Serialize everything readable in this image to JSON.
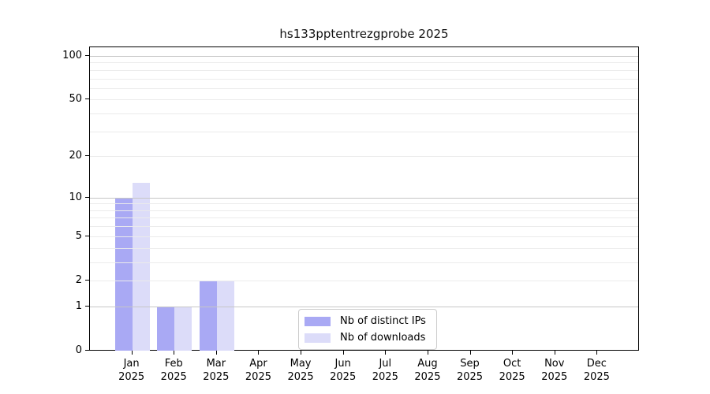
{
  "figure": {
    "title": "hs133pptentrezgprobe 2025"
  },
  "chart_data": {
    "type": "bar",
    "title": "hs133pptentrezgprobe 2025",
    "year": "2025",
    "categories": [
      "Jan",
      "Feb",
      "Mar",
      "Apr",
      "May",
      "Jun",
      "Jul",
      "Aug",
      "Sep",
      "Oct",
      "Nov",
      "Dec"
    ],
    "series": [
      {
        "name": "Nb of distinct IPs",
        "color": "#a9a9f4",
        "values": [
          10,
          1,
          2,
          0,
          0,
          0,
          0,
          0,
          0,
          0,
          0,
          0
        ]
      },
      {
        "name": "Nb of downloads",
        "color": "#dcdcf9",
        "values": [
          13,
          1,
          2,
          0,
          0,
          0,
          0,
          0,
          0,
          0,
          0,
          0
        ]
      }
    ],
    "xlabel": "",
    "ylabel": "",
    "y_axis": {
      "scale": "log10(1+x)",
      "tick_values": [
        0,
        1,
        2,
        5,
        10,
        20,
        50,
        100
      ],
      "major_grid_values": [
        1,
        10,
        100
      ],
      "minor_grid_values": [
        2,
        3,
        4,
        5,
        6,
        7,
        8,
        9,
        20,
        30,
        40,
        50,
        60,
        70,
        80,
        90
      ],
      "major_grid_color": "#c6c6c6",
      "minor_grid_color": "#ebebeb",
      "ylim": [
        0,
        116
      ]
    },
    "grid": "horizontal-only",
    "legend": {
      "position": "bottom-center",
      "entries": [
        "Nb of distinct IPs",
        "Nb of downloads"
      ]
    }
  }
}
